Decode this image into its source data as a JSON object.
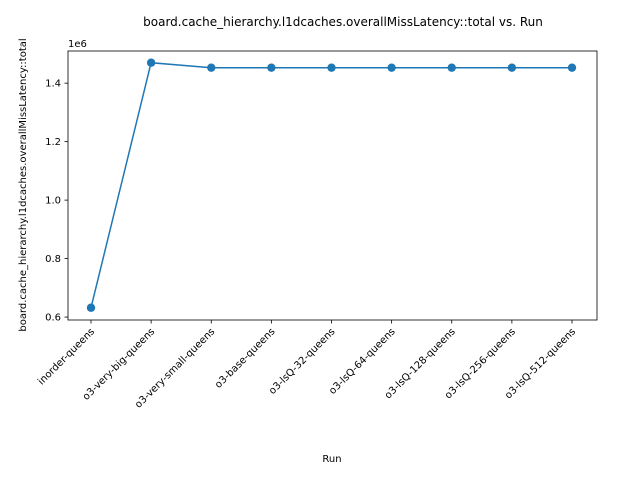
{
  "chart_data": {
    "type": "line",
    "title": "board.cache_hierarchy.l1dcaches.overallMissLatency::total vs. Run",
    "xlabel": "Run",
    "ylabel": "board.cache_hierarchy.l1dcaches.overallMissLatency::total",
    "y_offset_label": "1e6",
    "categories": [
      "inorder-queens",
      "o3-very-big-queens",
      "o3-very-small-queens",
      "o3-base-queens",
      "o3-lsQ-32-queens",
      "o3-lsQ-64-queens",
      "o3-lsQ-128-queens",
      "o3-lsQ-256-queens",
      "o3-lsQ-512-queens"
    ],
    "series": [
      {
        "values": [
          632000,
          1470000,
          1453000,
          1453000,
          1453000,
          1453000,
          1453000,
          1453000,
          1453000
        ]
      }
    ],
    "ylim": [
      590000,
      1510000
    ],
    "y_ticks": [
      600000,
      800000,
      1000000,
      1200000,
      1400000
    ],
    "y_tick_labels": [
      "0.6",
      "0.8",
      "1.0",
      "1.2",
      "1.4"
    ],
    "grid": false,
    "line_color": "#1f77b4"
  }
}
